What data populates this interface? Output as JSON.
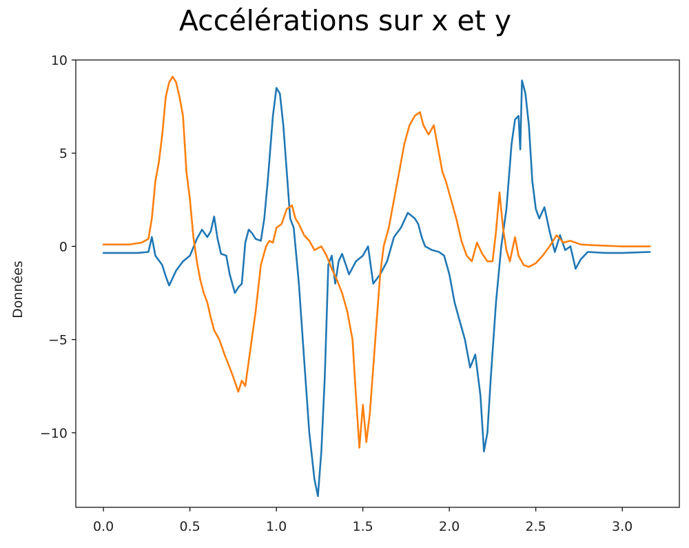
{
  "chart_data": {
    "type": "line",
    "title": "Accélérations sur x et y",
    "xlabel": "",
    "ylabel": "Données",
    "xlim": [
      -0.16,
      3.33
    ],
    "ylim": [
      -14.0,
      10.0
    ],
    "x_ticks": [
      0.0,
      0.5,
      1.0,
      1.5,
      2.0,
      2.5,
      3.0
    ],
    "x_tick_labels": [
      "0.0",
      "0.5",
      "1.0",
      "1.5",
      "2.0",
      "2.5",
      "3.0"
    ],
    "y_ticks": [
      10,
      5,
      0,
      -5,
      -10
    ],
    "y_tick_labels": [
      "10",
      "5",
      "0",
      "−5",
      "−10"
    ],
    "grid": false,
    "legend": "none",
    "series": [
      {
        "color": "#1f77b4",
        "points": [
          [
            0.0,
            -0.35
          ],
          [
            0.2,
            -0.35
          ],
          [
            0.26,
            -0.3
          ],
          [
            0.28,
            0.5
          ],
          [
            0.3,
            -0.5
          ],
          [
            0.34,
            -1.0
          ],
          [
            0.36,
            -1.6
          ],
          [
            0.38,
            -2.1
          ],
          [
            0.42,
            -1.3
          ],
          [
            0.46,
            -0.8
          ],
          [
            0.5,
            -0.5
          ],
          [
            0.54,
            0.4
          ],
          [
            0.57,
            0.9
          ],
          [
            0.6,
            0.5
          ],
          [
            0.62,
            0.8
          ],
          [
            0.64,
            1.6
          ],
          [
            0.66,
            0.4
          ],
          [
            0.68,
            -0.4
          ],
          [
            0.71,
            -0.5
          ],
          [
            0.73,
            -1.5
          ],
          [
            0.76,
            -2.5
          ],
          [
            0.78,
            -2.2
          ],
          [
            0.8,
            -2.0
          ],
          [
            0.82,
            0.2
          ],
          [
            0.84,
            0.9
          ],
          [
            0.86,
            0.7
          ],
          [
            0.88,
            0.4
          ],
          [
            0.91,
            0.3
          ],
          [
            0.93,
            1.5
          ],
          [
            0.95,
            3.5
          ],
          [
            0.98,
            7.0
          ],
          [
            1.0,
            8.5
          ],
          [
            1.02,
            8.2
          ],
          [
            1.04,
            6.5
          ],
          [
            1.06,
            4.0
          ],
          [
            1.08,
            1.5
          ],
          [
            1.1,
            1.0
          ],
          [
            1.13,
            -2.0
          ],
          [
            1.16,
            -6.0
          ],
          [
            1.19,
            -10.0
          ],
          [
            1.22,
            -12.5
          ],
          [
            1.24,
            -13.4
          ],
          [
            1.26,
            -11.0
          ],
          [
            1.28,
            -7.0
          ],
          [
            1.3,
            -1.0
          ],
          [
            1.32,
            -0.5
          ],
          [
            1.34,
            -2.0
          ],
          [
            1.36,
            -0.8
          ],
          [
            1.38,
            -0.4
          ],
          [
            1.42,
            -1.5
          ],
          [
            1.46,
            -0.8
          ],
          [
            1.5,
            -0.5
          ],
          [
            1.53,
            0.0
          ],
          [
            1.56,
            -2.0
          ],
          [
            1.6,
            -1.5
          ],
          [
            1.64,
            -0.8
          ],
          [
            1.68,
            0.5
          ],
          [
            1.72,
            1.0
          ],
          [
            1.76,
            1.8
          ],
          [
            1.8,
            1.5
          ],
          [
            1.82,
            1.2
          ],
          [
            1.84,
            0.5
          ],
          [
            1.86,
            0.0
          ],
          [
            1.9,
            -0.2
          ],
          [
            1.94,
            -0.3
          ],
          [
            1.97,
            -0.5
          ],
          [
            2.0,
            -1.5
          ],
          [
            2.03,
            -3.0
          ],
          [
            2.06,
            -4.0
          ],
          [
            2.09,
            -5.0
          ],
          [
            2.12,
            -6.5
          ],
          [
            2.15,
            -5.8
          ],
          [
            2.18,
            -8.0
          ],
          [
            2.2,
            -11.0
          ],
          [
            2.22,
            -10.0
          ],
          [
            2.24,
            -7.0
          ],
          [
            2.27,
            -3.0
          ],
          [
            2.3,
            0.0
          ],
          [
            2.33,
            2.0
          ],
          [
            2.36,
            5.5
          ],
          [
            2.38,
            6.8
          ],
          [
            2.4,
            7.0
          ],
          [
            2.41,
            5.2
          ],
          [
            2.42,
            8.9
          ],
          [
            2.44,
            8.2
          ],
          [
            2.46,
            6.5
          ],
          [
            2.48,
            3.5
          ],
          [
            2.5,
            2.0
          ],
          [
            2.52,
            1.5
          ],
          [
            2.55,
            2.1
          ],
          [
            2.58,
            0.8
          ],
          [
            2.61,
            -0.3
          ],
          [
            2.64,
            0.6
          ],
          [
            2.67,
            -0.2
          ],
          [
            2.7,
            0.0
          ],
          [
            2.73,
            -1.2
          ],
          [
            2.76,
            -0.7
          ],
          [
            2.8,
            -0.3
          ],
          [
            2.9,
            -0.35
          ],
          [
            3.0,
            -0.35
          ],
          [
            3.16,
            -0.3
          ]
        ]
      },
      {
        "color": "#ff7f0e",
        "points": [
          [
            0.0,
            0.1
          ],
          [
            0.15,
            0.1
          ],
          [
            0.22,
            0.2
          ],
          [
            0.26,
            0.4
          ],
          [
            0.28,
            1.5
          ],
          [
            0.3,
            3.5
          ],
          [
            0.32,
            4.5
          ],
          [
            0.34,
            6.0
          ],
          [
            0.36,
            8.0
          ],
          [
            0.38,
            8.8
          ],
          [
            0.4,
            9.1
          ],
          [
            0.42,
            8.8
          ],
          [
            0.44,
            8.0
          ],
          [
            0.46,
            7.0
          ],
          [
            0.48,
            4.0
          ],
          [
            0.5,
            2.5
          ],
          [
            0.52,
            0.5
          ],
          [
            0.54,
            -0.8
          ],
          [
            0.56,
            -1.8
          ],
          [
            0.58,
            -2.5
          ],
          [
            0.6,
            -3.0
          ],
          [
            0.62,
            -3.8
          ],
          [
            0.64,
            -4.5
          ],
          [
            0.67,
            -5.0
          ],
          [
            0.7,
            -5.8
          ],
          [
            0.73,
            -6.5
          ],
          [
            0.75,
            -7.0
          ],
          [
            0.78,
            -7.8
          ],
          [
            0.8,
            -7.2
          ],
          [
            0.82,
            -7.5
          ],
          [
            0.85,
            -5.5
          ],
          [
            0.88,
            -3.5
          ],
          [
            0.91,
            -1.0
          ],
          [
            0.94,
            0.0
          ],
          [
            0.96,
            0.3
          ],
          [
            0.98,
            0.2
          ],
          [
            1.0,
            1.0
          ],
          [
            1.03,
            1.2
          ],
          [
            1.06,
            2.0
          ],
          [
            1.09,
            2.2
          ],
          [
            1.11,
            1.5
          ],
          [
            1.13,
            1.2
          ],
          [
            1.16,
            0.6
          ],
          [
            1.19,
            0.3
          ],
          [
            1.22,
            -0.2
          ],
          [
            1.26,
            0.0
          ],
          [
            1.29,
            -0.5
          ],
          [
            1.32,
            -1.2
          ],
          [
            1.35,
            -1.8
          ],
          [
            1.38,
            -2.5
          ],
          [
            1.41,
            -3.5
          ],
          [
            1.44,
            -5.0
          ],
          [
            1.46,
            -8.0
          ],
          [
            1.48,
            -10.8
          ],
          [
            1.5,
            -8.5
          ],
          [
            1.52,
            -10.5
          ],
          [
            1.54,
            -9.0
          ],
          [
            1.56,
            -6.5
          ],
          [
            1.58,
            -4.0
          ],
          [
            1.6,
            -1.5
          ],
          [
            1.62,
            0.0
          ],
          [
            1.65,
            1.0
          ],
          [
            1.68,
            2.5
          ],
          [
            1.71,
            4.0
          ],
          [
            1.74,
            5.5
          ],
          [
            1.77,
            6.5
          ],
          [
            1.8,
            7.0
          ],
          [
            1.83,
            7.2
          ],
          [
            1.85,
            6.5
          ],
          [
            1.88,
            6.0
          ],
          [
            1.91,
            6.5
          ],
          [
            1.93,
            5.5
          ],
          [
            1.96,
            4.0
          ],
          [
            1.98,
            3.5
          ],
          [
            2.01,
            2.5
          ],
          [
            2.04,
            1.5
          ],
          [
            2.07,
            0.3
          ],
          [
            2.1,
            -0.5
          ],
          [
            2.13,
            -0.8
          ],
          [
            2.16,
            0.2
          ],
          [
            2.19,
            -0.4
          ],
          [
            2.22,
            -0.8
          ],
          [
            2.25,
            -0.8
          ],
          [
            2.27,
            0.8
          ],
          [
            2.29,
            2.9
          ],
          [
            2.31,
            1.0
          ],
          [
            2.33,
            -0.2
          ],
          [
            2.35,
            -0.8
          ],
          [
            2.38,
            0.5
          ],
          [
            2.4,
            -0.5
          ],
          [
            2.43,
            -1.0
          ],
          [
            2.46,
            -1.1
          ],
          [
            2.5,
            -0.9
          ],
          [
            2.54,
            -0.5
          ],
          [
            2.58,
            0.0
          ],
          [
            2.62,
            0.6
          ],
          [
            2.66,
            0.2
          ],
          [
            2.7,
            0.3
          ],
          [
            2.76,
            0.1
          ],
          [
            2.86,
            0.05
          ],
          [
            3.0,
            0.0
          ],
          [
            3.16,
            0.0
          ]
        ]
      }
    ]
  }
}
